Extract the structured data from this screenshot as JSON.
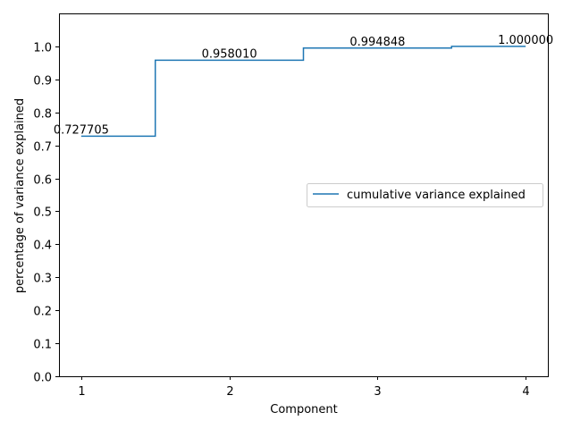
{
  "chart_data": {
    "type": "line",
    "drawstyle": "steps-mid",
    "x": [
      1,
      2,
      3,
      4
    ],
    "series": [
      {
        "name": "cumulative variance explained",
        "values": [
          0.727705,
          0.95801,
          0.994848,
          1.0
        ],
        "color": "#1f77b4"
      }
    ],
    "data_labels": [
      "0.727705",
      "0.958010",
      "0.994848",
      "1.000000"
    ],
    "xlabel": "Component",
    "ylabel": "percentage of variance explained",
    "xlim": [
      0.85,
      4.15
    ],
    "ylim": [
      0,
      1.1
    ],
    "xticks": [
      1,
      2,
      3,
      4
    ],
    "yticks": [
      0.0,
      0.1,
      0.2,
      0.3,
      0.4,
      0.5,
      0.6,
      0.7,
      0.8,
      0.9,
      1.0
    ],
    "grid": false,
    "legend_position": "center-right"
  }
}
